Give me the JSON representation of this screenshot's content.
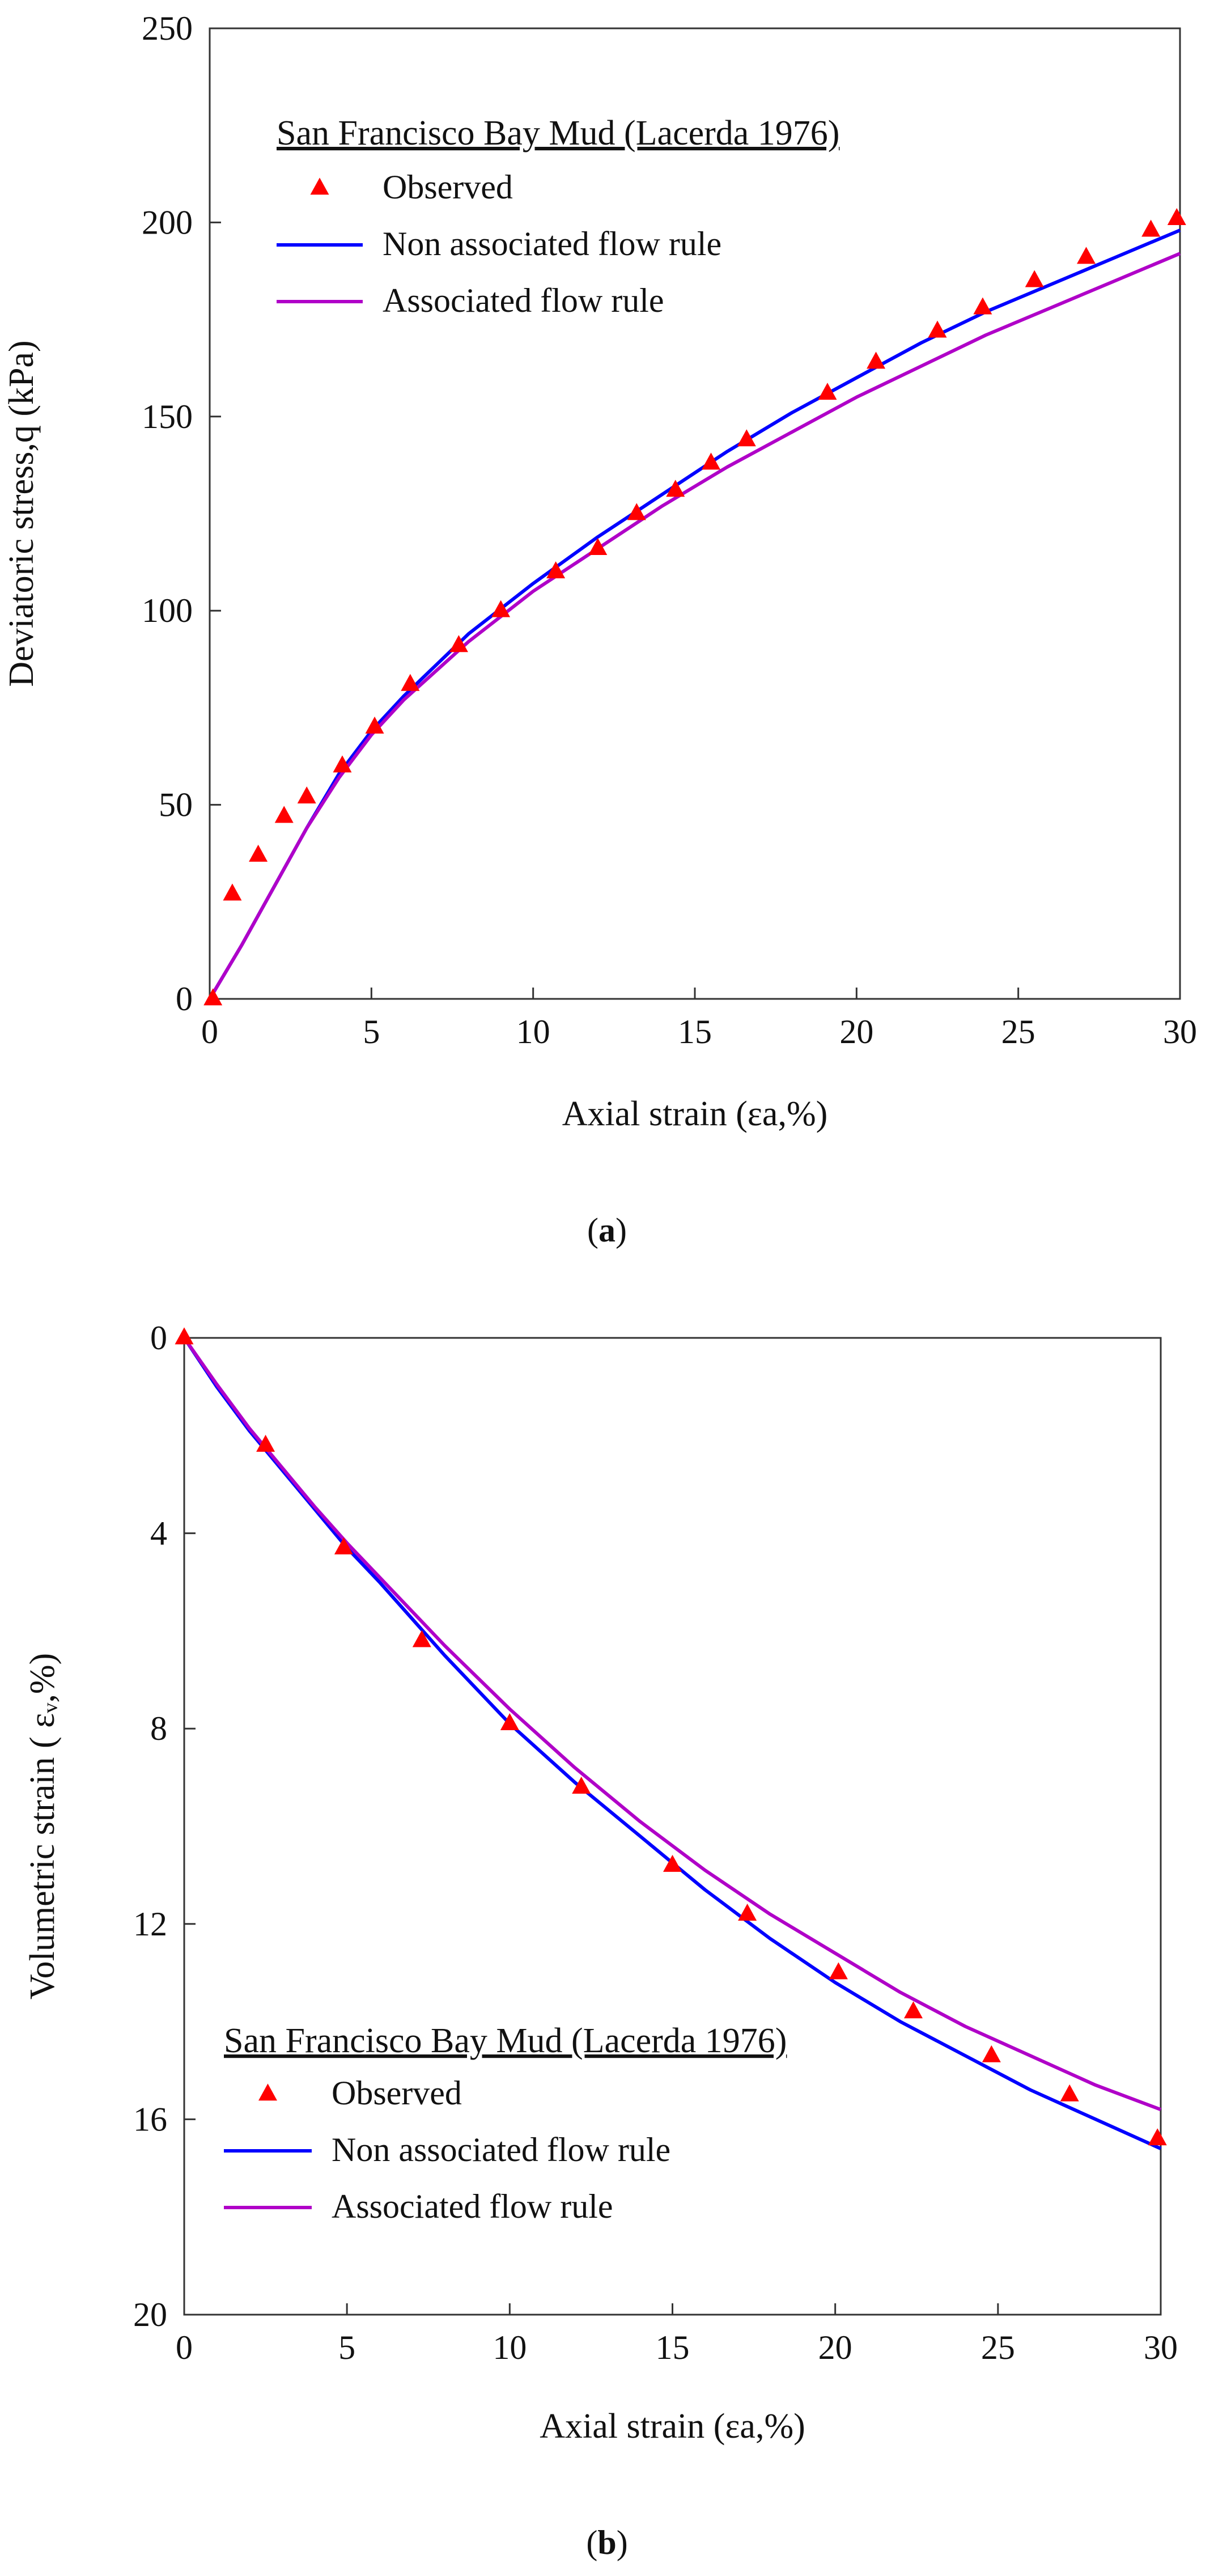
{
  "chart_data": [
    {
      "type": "line",
      "panel": "a",
      "panel_label": "a",
      "xlabel": "Axial strain (εa,%)",
      "ylabel": "Deviatoric stress,q (kPa)",
      "xlim": [
        0,
        30
      ],
      "ylim": [
        0,
        250
      ],
      "y_inverted": false,
      "grid": false,
      "x_ticks": [
        "0",
        "5",
        "10",
        "15",
        "20",
        "25",
        "30"
      ],
      "y_ticks": [
        "0",
        "50",
        "100",
        "150",
        "200",
        "250"
      ],
      "legend": {
        "title": "San Francisco Bay Mud (Lacerda 1976)",
        "placement": "top-left",
        "entries": [
          "Observed",
          "Non associated flow rule",
          "Associated flow rule"
        ]
      },
      "colors": {
        "observed": "#ff0000",
        "non_associated": "#0000ff",
        "associated": "#b000c8"
      },
      "series": [
        {
          "name": "Observed",
          "kind": "scatter",
          "x": [
            0.1,
            0.7,
            1.5,
            2.3,
            3.0,
            4.1,
            5.1,
            6.2,
            7.7,
            9.0,
            10.7,
            12.0,
            13.2,
            14.4,
            15.5,
            16.6,
            19.1,
            20.6,
            22.5,
            23.9,
            25.5,
            27.1,
            29.1,
            29.9
          ],
          "y": [
            0,
            27,
            37,
            47,
            52,
            60,
            70,
            81,
            91,
            100,
            110,
            116,
            125,
            131,
            138,
            144,
            156,
            164,
            172,
            178,
            185,
            191,
            198,
            201
          ]
        },
        {
          "name": "Non associated flow rule",
          "kind": "line",
          "x": [
            0,
            1,
            2,
            3,
            4,
            5,
            6,
            8,
            10,
            12,
            14,
            16,
            18,
            20,
            22,
            24,
            26,
            28,
            30
          ],
          "y": [
            0,
            14,
            29,
            44,
            58,
            69,
            78,
            94,
            107,
            119,
            130,
            141,
            151,
            160,
            169,
            177,
            184,
            191,
            198
          ]
        },
        {
          "name": "Associated flow rule",
          "kind": "line",
          "x": [
            0,
            1,
            2,
            3,
            4,
            5,
            6,
            8,
            10,
            12,
            14,
            16,
            18,
            20,
            22,
            24,
            26,
            28,
            30
          ],
          "y": [
            0,
            14,
            29,
            44,
            57,
            68,
            77,
            92,
            105,
            116,
            127,
            137,
            146,
            155,
            163,
            171,
            178,
            185,
            192
          ]
        }
      ]
    },
    {
      "type": "line",
      "panel": "b",
      "panel_label": "b",
      "xlabel": "Axial strain (εa,%)",
      "ylabel": "Volumetric strain ( εᵥ,%)",
      "xlim": [
        0,
        30
      ],
      "ylim": [
        0,
        20
      ],
      "y_inverted": true,
      "grid": false,
      "x_ticks": [
        "0",
        "5",
        "10",
        "15",
        "20",
        "25",
        "30"
      ],
      "y_ticks": [
        "0",
        "4",
        "8",
        "12",
        "16",
        "20"
      ],
      "legend": {
        "title": "San Francisco Bay Mud (Lacerda 1976)",
        "placement": "bottom-left",
        "entries": [
          "Observed",
          "Non associated flow rule",
          "Associated flow rule"
        ]
      },
      "colors": {
        "observed": "#ff0000",
        "non_associated": "#0000ff",
        "associated": "#b000c8"
      },
      "series": [
        {
          "name": "Observed",
          "kind": "scatter",
          "x": [
            0,
            2.5,
            4.9,
            7.3,
            10.0,
            12.2,
            15.0,
            17.3,
            20.1,
            22.4,
            24.8,
            27.2,
            29.9
          ],
          "y": [
            0,
            2.2,
            4.3,
            6.2,
            7.9,
            9.2,
            10.8,
            11.8,
            13.0,
            13.8,
            14.7,
            15.5,
            16.4
          ]
        },
        {
          "name": "Non associated flow rule",
          "kind": "line",
          "x": [
            0,
            1,
            2,
            3,
            4,
            5,
            6,
            8,
            10,
            12,
            14,
            16,
            18,
            20,
            22,
            24,
            26,
            28,
            30
          ],
          "y": [
            0,
            1.0,
            1.9,
            2.7,
            3.5,
            4.3,
            5.0,
            6.5,
            7.9,
            9.1,
            10.2,
            11.3,
            12.3,
            13.2,
            14.0,
            14.7,
            15.4,
            16.0,
            16.6
          ]
        },
        {
          "name": "Associated flow rule",
          "kind": "line",
          "x": [
            0,
            1,
            2,
            3,
            4,
            5,
            6,
            8,
            10,
            12,
            14,
            16,
            18,
            20,
            22,
            24,
            26,
            28,
            30
          ],
          "y": [
            0,
            0.95,
            1.85,
            2.65,
            3.45,
            4.2,
            4.9,
            6.3,
            7.6,
            8.8,
            9.9,
            10.9,
            11.8,
            12.6,
            13.4,
            14.1,
            14.7,
            15.3,
            15.8
          ]
        }
      ]
    }
  ]
}
